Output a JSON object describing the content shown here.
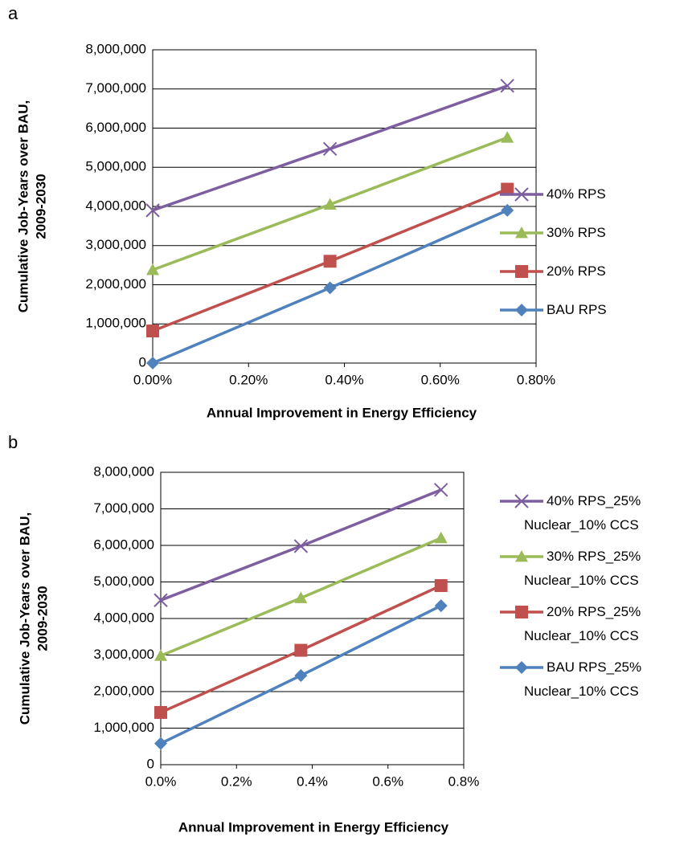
{
  "chart_data": [
    {
      "type": "line",
      "panel": "a",
      "xlabel": "Annual Improvement in Energy Efficiency",
      "ylabel": [
        "Cumulative Job-Years over BAU,",
        "2009-2030"
      ],
      "x": [
        0,
        0.37,
        0.74
      ],
      "xlim": [
        0,
        0.8
      ],
      "xticks": [
        {
          "value": 0,
          "label": "0.00%"
        },
        {
          "value": 0.2,
          "label": "0.20%"
        },
        {
          "value": 0.4,
          "label": "0.40%"
        },
        {
          "value": 0.6,
          "label": "0.60%"
        },
        {
          "value": 0.8,
          "label": "0.80%"
        }
      ],
      "ylim": [
        0,
        8000000
      ],
      "yticks": [
        0,
        {
          "value": 1000000,
          "label": "1,000,000"
        },
        {
          "value": 2000000,
          "label": "2,000,000"
        },
        {
          "value": 3000000,
          "label": "3,000,000"
        },
        {
          "value": 4000000,
          "label": "4,000,000"
        },
        {
          "value": 5000000,
          "label": "5,000,000"
        },
        {
          "value": 6000000,
          "label": "6,000,000"
        },
        {
          "value": 7000000,
          "label": "7,000,000"
        },
        {
          "value": 8000000,
          "label": "8,000,000"
        }
      ],
      "grid": true,
      "legend": "right",
      "series": [
        {
          "name": "40% RPS",
          "color": "#7d5fa0",
          "marker": "x",
          "values": [
            3900000,
            5470000,
            7080000
          ]
        },
        {
          "name": "30% RPS",
          "color": "#9bbb59",
          "marker": "triangle",
          "values": [
            2380000,
            4050000,
            5760000
          ]
        },
        {
          "name": "20% RPS",
          "color": "#c0504d",
          "marker": "square",
          "values": [
            820000,
            2600000,
            4440000
          ]
        },
        {
          "name": "BAU RPS",
          "color": "#4f81bd",
          "marker": "diamond",
          "values": [
            0,
            1920000,
            3900000
          ]
        }
      ]
    },
    {
      "type": "line",
      "panel": "b",
      "xlabel": "Annual Improvement in Energy Efficiency",
      "ylabel": [
        "Cumulative Job-Years over BAU,",
        "2009-2030"
      ],
      "x": [
        0,
        0.37,
        0.74
      ],
      "xlim": [
        0,
        0.8
      ],
      "xticks": [
        {
          "value": 0,
          "label": "0.0%"
        },
        {
          "value": 0.2,
          "label": "0.2%"
        },
        {
          "value": 0.4,
          "label": "0.4%"
        },
        {
          "value": 0.6,
          "label": "0.6%"
        },
        {
          "value": 0.8,
          "label": "0.8%"
        }
      ],
      "ylim": [
        0,
        8000000
      ],
      "yticks": [
        0,
        {
          "value": 1000000,
          "label": "1,000,000"
        },
        {
          "value": 2000000,
          "label": "2,000,000"
        },
        {
          "value": 3000000,
          "label": "3,000,000"
        },
        {
          "value": 4000000,
          "label": "4,000,000"
        },
        {
          "value": 5000000,
          "label": "5,000,000"
        },
        {
          "value": 6000000,
          "label": "6,000,000"
        },
        {
          "value": 7000000,
          "label": "7,000,000"
        },
        {
          "value": 8000000,
          "label": "8,000,000"
        }
      ],
      "grid": true,
      "legend": "right",
      "series": [
        {
          "name": "40% RPS_25% Nuclear_10% CCS",
          "color": "#7d5fa0",
          "marker": "x",
          "values": [
            4500000,
            5980000,
            7520000
          ]
        },
        {
          "name": "30% RPS_25% Nuclear_10% CCS",
          "color": "#9bbb59",
          "marker": "triangle",
          "values": [
            2980000,
            4560000,
            6200000
          ]
        },
        {
          "name": "20% RPS_25% Nuclear_10% CCS",
          "color": "#c0504d",
          "marker": "square",
          "values": [
            1430000,
            3130000,
            4900000
          ]
        },
        {
          "name": "BAU RPS_25% Nuclear_10% CCS",
          "color": "#4f81bd",
          "marker": "diamond",
          "values": [
            580000,
            2440000,
            4350000
          ]
        }
      ]
    }
  ]
}
